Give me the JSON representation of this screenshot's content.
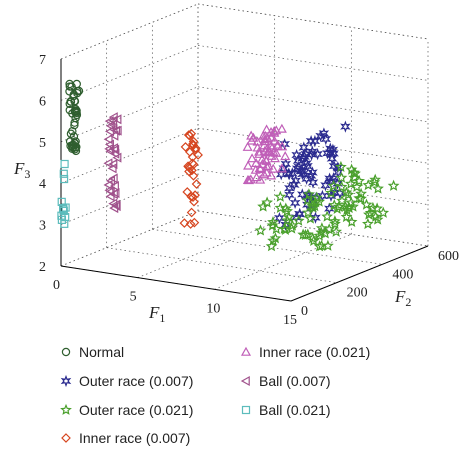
{
  "chart_data": {
    "type": "scatter3d",
    "axes": {
      "x": {
        "label": "F",
        "subscript": "1",
        "range": [
          0,
          15
        ],
        "ticks": [
          0,
          5,
          10,
          15
        ]
      },
      "y": {
        "label": "F",
        "subscript": "2",
        "range": [
          0,
          600
        ],
        "ticks": [
          0,
          200,
          400,
          600
        ]
      },
      "z": {
        "label": "F",
        "subscript": "3",
        "range": [
          2,
          7
        ],
        "ticks": [
          2,
          3,
          4,
          5,
          6,
          7
        ]
      }
    },
    "grid": true,
    "legend_position": "bottom",
    "series": [
      {
        "name": "Normal",
        "marker": "circle",
        "color": "#2f5e2f",
        "cluster": {
          "x": [
            0.5,
            1.0
          ],
          "y": [
            0,
            15
          ],
          "z": [
            4.8,
            6.5
          ],
          "n": 45
        }
      },
      {
        "name": "Outer race (0.007)",
        "marker": "hexagram",
        "color": "#2b2b8f",
        "cluster": {
          "x": [
            13.0,
            14.5
          ],
          "y": [
            60,
            280
          ],
          "z": [
            3.6,
            5.7
          ],
          "n": 70
        }
      },
      {
        "name": "Outer race (0.021)",
        "marker": "pentagram",
        "color": "#4aa02c",
        "cluster": {
          "x": [
            12.0,
            15.0
          ],
          "y": [
            50,
            480
          ],
          "z": [
            2.8,
            4.2
          ],
          "n": 90
        }
      },
      {
        "name": "Inner race (0.007)",
        "marker": "diamond",
        "color": "#d6451f",
        "cluster": {
          "x": [
            7.8,
            8.6
          ],
          "y": [
            0,
            30
          ],
          "z": [
            3.4,
            5.7
          ],
          "n": 30
        }
      },
      {
        "name": "Inner race (0.021)",
        "marker": "triangle-up",
        "color": "#c05fb8",
        "cluster": {
          "x": [
            11.5,
            13.0
          ],
          "y": [
            30,
            120
          ],
          "z": [
            4.6,
            5.8
          ],
          "n": 60
        }
      },
      {
        "name": "Ball (0.007)",
        "marker": "triangle-left",
        "color": "#a0528c",
        "cluster": {
          "x": [
            3.0,
            3.6
          ],
          "y": [
            0,
            12
          ],
          "z": [
            3.5,
            5.8
          ],
          "n": 35
        }
      },
      {
        "name": "Ball (0.021)",
        "marker": "square",
        "color": "#5cbcbc",
        "cluster": {
          "x": [
            0.0,
            0.2
          ],
          "y": [
            0,
            10
          ],
          "z": [
            3.0,
            4.5
          ],
          "n": 12
        }
      }
    ]
  }
}
